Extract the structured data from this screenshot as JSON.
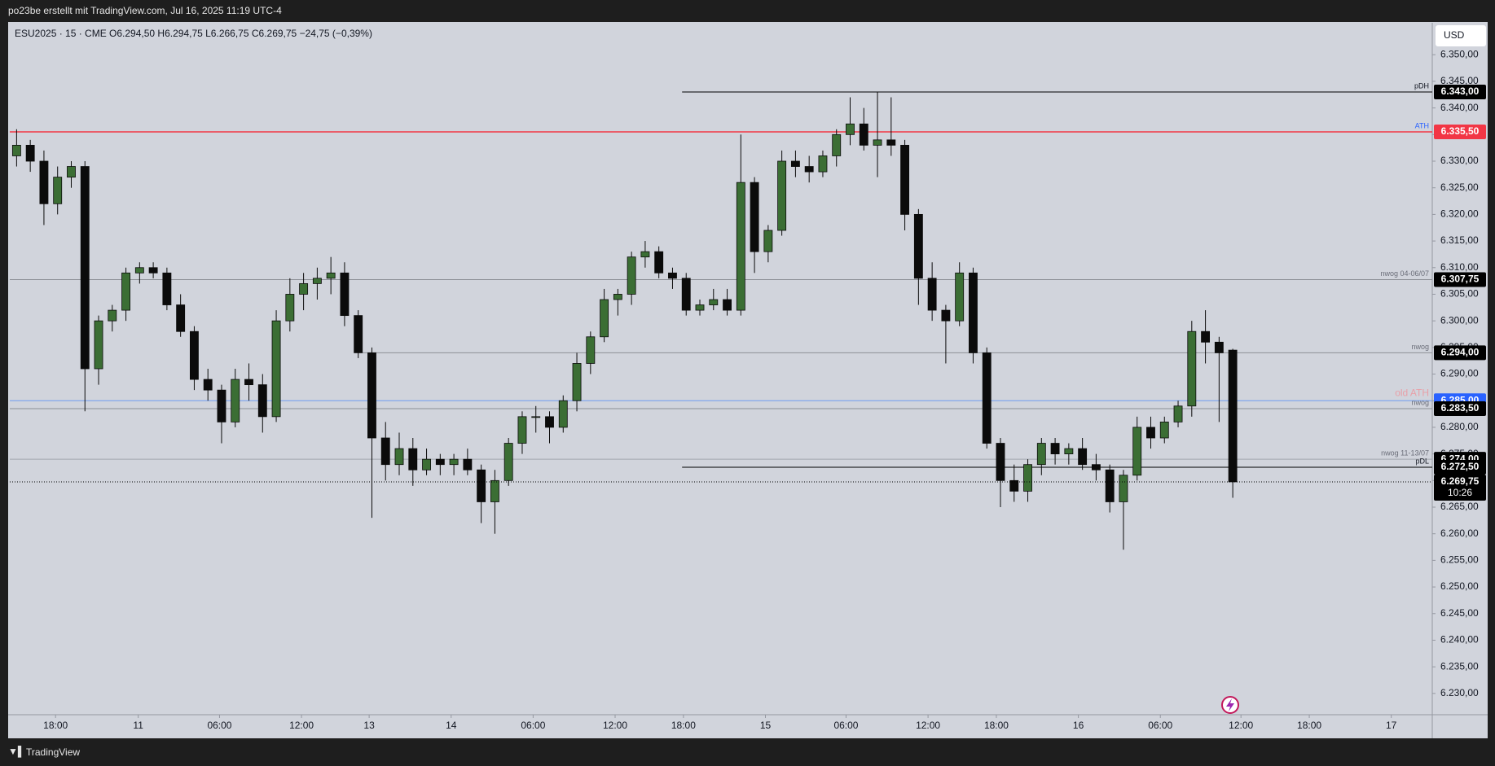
{
  "header": "po23be erstellt mit TradingView.com, Jul 16, 2025 11:19 UTC-4",
  "footer": "TradingView",
  "chart_data": {
    "type": "candlestick",
    "legend": "ESU2025 · 15 · CME  O6.294,50  H6.294,75  L6.266,75  C6.269,75  −24,75 (−0,39%)",
    "currency": "USD",
    "up_color": "#3b6e34",
    "down_color": "#0b0b0b",
    "x": [
      0,
      1,
      2,
      3,
      4,
      5,
      6,
      7,
      8,
      9,
      10,
      11,
      12,
      13,
      14,
      15,
      16,
      17,
      18,
      19,
      20,
      21,
      22,
      23,
      24,
      25,
      26,
      27,
      28,
      29,
      30,
      31,
      32,
      33,
      34,
      35,
      36,
      37,
      38,
      39,
      40,
      41,
      42,
      43,
      44,
      45,
      46,
      47,
      48,
      49,
      50,
      51,
      52,
      53,
      54,
      55,
      56,
      57,
      58,
      59,
      60,
      61,
      62,
      63,
      64,
      65,
      66,
      67,
      68,
      69,
      70,
      71,
      72,
      73,
      74,
      75,
      76,
      77,
      78,
      79,
      80,
      81,
      82,
      83,
      84,
      85,
      86,
      87,
      88,
      89
    ],
    "open": [
      6331,
      6333,
      6330,
      6322,
      6327,
      6329,
      6291,
      6300,
      6302,
      6309,
      6310,
      6309,
      6303,
      6298,
      6289,
      6287,
      6281,
      6289,
      6288,
      6282,
      6300,
      6305,
      6307,
      6308,
      6309,
      6301,
      6294,
      6278,
      6273,
      6276,
      6272,
      6274,
      6273,
      6274,
      6272,
      6266,
      6270,
      6277,
      6282,
      6282,
      6280,
      6285,
      6292,
      6297,
      6304,
      6305,
      6312,
      6313,
      6309,
      6308,
      6302,
      6303,
      6304,
      6302,
      6326,
      6313,
      6317,
      6330,
      6329,
      6328,
      6331,
      6335,
      6337,
      6333,
      6334,
      6333,
      6320,
      6308,
      6302,
      6300,
      6309,
      6294,
      6277,
      6270,
      6268,
      6273,
      6277,
      6275,
      6276,
      6273,
      6272,
      6266,
      6271,
      6280,
      6278,
      6281,
      6284,
      6298,
      6296,
      6294.5
    ],
    "high": [
      6336,
      6334,
      6332,
      6329,
      6330,
      6330,
      6301,
      6303,
      6310,
      6311,
      6311,
      6310,
      6305,
      6299,
      6291,
      6288,
      6291,
      6292,
      6290,
      6302,
      6308,
      6309,
      6310,
      6312,
      6311,
      6302,
      6295,
      6281,
      6279,
      6278,
      6276,
      6275,
      6275,
      6276,
      6273,
      6272,
      6278,
      6283,
      6284,
      6283,
      6286,
      6294,
      6298,
      6306,
      6306,
      6313,
      6315,
      6314,
      6310,
      6309,
      6304,
      6306,
      6306,
      6335,
      6327,
      6318,
      6332,
      6332,
      6331,
      6332,
      6336,
      6342,
      6340,
      6343,
      6342,
      6334,
      6321,
      6311,
      6303,
      6311,
      6310,
      6295,
      6278,
      6273,
      6274,
      6278,
      6278,
      6277,
      6278,
      6275,
      6273,
      6272,
      6282,
      6282,
      6282,
      6285,
      6300,
      6302,
      6297,
      6294.75
    ],
    "low": [
      6329,
      6328,
      6318,
      6320,
      6325,
      6283,
      6288,
      6298,
      6300,
      6307,
      6308,
      6302,
      6297,
      6287,
      6285,
      6277,
      6280,
      6285,
      6279,
      6281,
      6298,
      6302,
      6304,
      6305,
      6299,
      6293,
      6263,
      6270,
      6271,
      6269,
      6271,
      6271,
      6271,
      6271,
      6262,
      6260,
      6269,
      6275,
      6279,
      6277,
      6279,
      6283,
      6290,
      6296,
      6301,
      6303,
      6310,
      6308,
      6306,
      6301,
      6301,
      6302,
      6301,
      6301,
      6309,
      6311,
      6316,
      6327,
      6326,
      6327,
      6329,
      6333,
      6332,
      6327,
      6331,
      6317,
      6303,
      6300,
      6292,
      6299,
      6292,
      6276,
      6265,
      6266,
      6266,
      6271,
      6273,
      6273,
      6272,
      6270,
      6264,
      6257,
      6270,
      6276,
      6277,
      6280,
      6282,
      6292,
      6281,
      6266.75
    ],
    "close": [
      6333,
      6330,
      6322,
      6327,
      6329,
      6291,
      6300,
      6302,
      6309,
      6310,
      6309,
      6303,
      6298,
      6289,
      6287,
      6281,
      6289,
      6288,
      6282,
      6300,
      6305,
      6307,
      6308,
      6309,
      6301,
      6294,
      6278,
      6273,
      6276,
      6272,
      6274,
      6273,
      6274,
      6272,
      6266,
      6270,
      6277,
      6282,
      6282,
      6280,
      6285,
      6292,
      6297,
      6304,
      6305,
      6312,
      6313,
      6309,
      6308,
      6302,
      6303,
      6304,
      6302,
      6326,
      6313,
      6317,
      6330,
      6329,
      6328,
      6331,
      6335,
      6337,
      6333,
      6334,
      6333,
      6320,
      6308,
      6302,
      6300,
      6309,
      6294,
      6277,
      6270,
      6268,
      6273,
      6277,
      6275,
      6276,
      6273,
      6272,
      6266,
      6271,
      6280,
      6278,
      6281,
      6284,
      6298,
      6296,
      6294,
      6269.75
    ],
    "xlim": [
      0,
      104.1
    ],
    "ylim": [
      6226,
      6356
    ],
    "xticks": [
      {
        "value": 3.35,
        "label": "18:00"
      },
      {
        "value": 9.4,
        "label": "11"
      },
      {
        "value": 15.35,
        "label": "06:00"
      },
      {
        "value": 21.35,
        "label": "12:00"
      },
      {
        "value": 26.3,
        "label": "13"
      },
      {
        "value": 32.3,
        "label": "14"
      },
      {
        "value": 38.3,
        "label": "06:00"
      },
      {
        "value": 44.3,
        "label": "12:00"
      },
      {
        "value": 49.3,
        "label": "18:00"
      },
      {
        "value": 55.3,
        "label": "15"
      },
      {
        "value": 61.2,
        "label": "06:00"
      },
      {
        "value": 67.2,
        "label": "12:00"
      },
      {
        "value": 72.2,
        "label": "18:00"
      },
      {
        "value": 78.2,
        "label": "16"
      },
      {
        "value": 84.2,
        "label": "06:00"
      },
      {
        "value": 90.1,
        "label": "12:00"
      },
      {
        "value": 95.1,
        "label": "18:00"
      },
      {
        "value": 101.1,
        "label": "17"
      }
    ],
    "yticks": [
      {
        "value": 6230,
        "label": "6.230,00"
      },
      {
        "value": 6235,
        "label": "6.235,00"
      },
      {
        "value": 6240,
        "label": "6.240,00"
      },
      {
        "value": 6245,
        "label": "6.245,00"
      },
      {
        "value": 6250,
        "label": "6.250,00"
      },
      {
        "value": 6255,
        "label": "6.255,00"
      },
      {
        "value": 6260,
        "label": "6.260,00"
      },
      {
        "value": 6265,
        "label": "6.265,00"
      },
      {
        "value": 6270,
        "label": "6.270,00"
      },
      {
        "value": 6275,
        "label": "6.275,00"
      },
      {
        "value": 6280,
        "label": "6.280,00"
      },
      {
        "value": 6285,
        "label": "6.285,00"
      },
      {
        "value": 6290,
        "label": "6.290,00"
      },
      {
        "value": 6295,
        "label": "6.295,00"
      },
      {
        "value": 6300,
        "label": "6.300,00"
      },
      {
        "value": 6305,
        "label": "6.305,00"
      },
      {
        "value": 6310,
        "label": "6.310,00"
      },
      {
        "value": 6315,
        "label": "6.315,00"
      },
      {
        "value": 6320,
        "label": "6.320,00"
      },
      {
        "value": 6325,
        "label": "6.325,00"
      },
      {
        "value": 6330,
        "label": "6.330,00"
      },
      {
        "value": 6335,
        "label": "6.335,00"
      },
      {
        "value": 6340,
        "label": "6.340,00"
      },
      {
        "value": 6345,
        "label": "6.345,00"
      },
      {
        "value": 6350,
        "label": "6.350,00"
      }
    ],
    "levels": [
      {
        "name": "pDH",
        "value": 6343,
        "label": "6.343,00",
        "color": "#000000",
        "tag_color": "#000000",
        "name_color": "#131722",
        "start": 49.2
      },
      {
        "name": "ATH",
        "value": 6335.5,
        "label": "6.335,50",
        "color": "#f23645",
        "tag_color": "#f23645",
        "name_color": "#2962ff",
        "start": 0
      },
      {
        "name": "nwog 04-06/07",
        "value": 6307.75,
        "label": "6.307,75",
        "color": "#8c8f96",
        "tag_color": "#000000",
        "name_color": "#6a6d78",
        "start": 0
      },
      {
        "name": "nwog",
        "value": 6294,
        "label": "6.294,00",
        "color": "#8c8f96",
        "tag_color": "#000000",
        "name_color": "#6a6d78",
        "start": 25.8
      },
      {
        "name": "old ATH",
        "value": 6285,
        "label": "6.285,00",
        "color": "#6f9cf0",
        "tag_color": "#2962ff",
        "name_color": "#e8a0a8",
        "start": 0
      },
      {
        "name": "nwog",
        "value": 6283.5,
        "label": "6.283,50",
        "color": "#8c8f96",
        "tag_color": "#000000",
        "name_color": "#6a6d78",
        "start": 0
      },
      {
        "name": "nwog 11-13/07",
        "value": 6274,
        "label": "6.274,00",
        "color": "#a4a7ae",
        "tag_color": "#000000",
        "name_color": "#6a6d78",
        "start": 0
      },
      {
        "name": "pDL",
        "value": 6272.5,
        "label": "6.272,50",
        "color": "#000000",
        "tag_color": "#000000",
        "name_color": "#131722",
        "start": 49.2
      }
    ],
    "last_price": {
      "value": 6269.75,
      "label": "6.269,75",
      "countdown": "10:26",
      "color": "#000000"
    }
  }
}
